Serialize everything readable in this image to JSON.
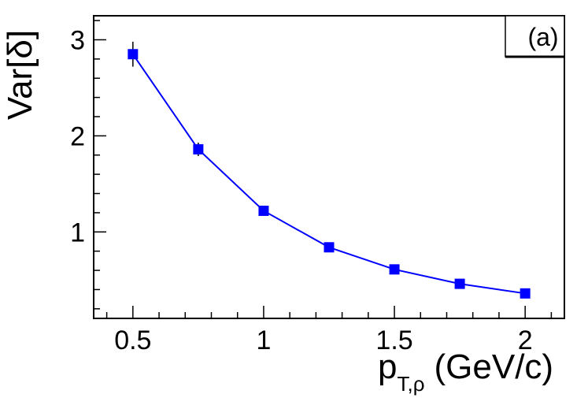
{
  "chart_data": {
    "type": "scatter",
    "panel_label": "(a)",
    "ylabel": "Var[δ]",
    "xlabel": {
      "main": "p",
      "subscript": "T,ρ",
      "unit": "(GeV/c)"
    },
    "xlim": [
      0.35,
      2.15
    ],
    "ylim": [
      0.1,
      3.25
    ],
    "x_ticks": [
      0.5,
      1,
      1.5,
      2
    ],
    "x_tick_labels": [
      "0.5",
      "1",
      "1.5",
      "2"
    ],
    "y_ticks": [
      1,
      2,
      3
    ],
    "y_tick_labels": [
      "1",
      "2",
      "3"
    ],
    "grid": false,
    "series": [
      {
        "color": "#0000ff",
        "marker": "square",
        "connected": true,
        "points": [
          {
            "x": 0.5,
            "y": 2.85,
            "err": 0.13
          },
          {
            "x": 0.75,
            "y": 1.86,
            "err": 0.07
          },
          {
            "x": 1.0,
            "y": 1.22,
            "err": 0.03
          },
          {
            "x": 1.25,
            "y": 0.84,
            "err": 0.02
          },
          {
            "x": 1.5,
            "y": 0.61,
            "err": 0.02
          },
          {
            "x": 1.75,
            "y": 0.46,
            "err": 0.015
          },
          {
            "x": 2.0,
            "y": 0.36,
            "err": 0.01
          }
        ]
      }
    ]
  }
}
